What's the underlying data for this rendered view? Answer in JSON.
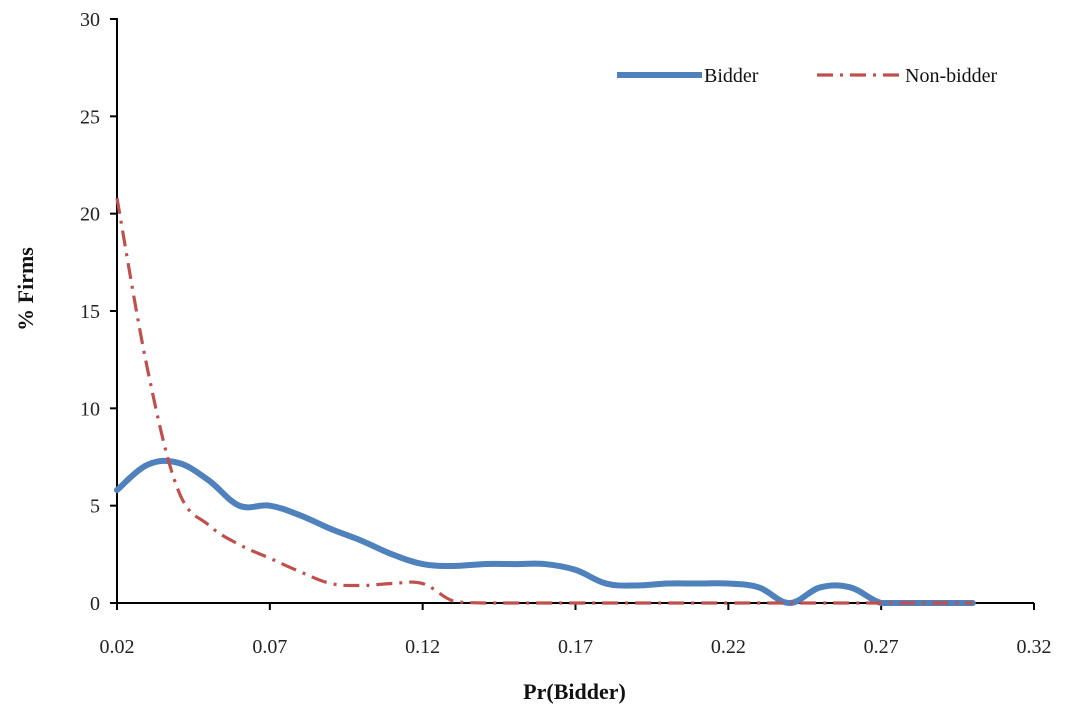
{
  "chart_data": {
    "type": "line",
    "title": "",
    "xlabel": "Pr(Bidder)",
    "ylabel": "% Firms",
    "xlim": [
      0.02,
      0.32
    ],
    "ylim": [
      0,
      30
    ],
    "x_ticks": [
      "0.02",
      "0.07",
      "0.12",
      "0.17",
      "0.22",
      "0.27",
      "0.32"
    ],
    "y_ticks": [
      "0",
      "5",
      "10",
      "15",
      "20",
      "25",
      "30"
    ],
    "grid": false,
    "legend_position": "top-right",
    "series": [
      {
        "name": "Bidder",
        "color": "#4f81bd",
        "style": "solid",
        "points": [
          [
            0.02,
            5.8
          ],
          [
            0.03,
            7.1
          ],
          [
            0.04,
            7.2
          ],
          [
            0.05,
            6.3
          ],
          [
            0.06,
            5.0
          ],
          [
            0.07,
            5.0
          ],
          [
            0.08,
            4.5
          ],
          [
            0.09,
            3.8
          ],
          [
            0.1,
            3.2
          ],
          [
            0.11,
            2.5
          ],
          [
            0.12,
            2.0
          ],
          [
            0.13,
            1.9
          ],
          [
            0.14,
            2.0
          ],
          [
            0.15,
            2.0
          ],
          [
            0.16,
            2.0
          ],
          [
            0.17,
            1.7
          ],
          [
            0.18,
            1.0
          ],
          [
            0.19,
            0.9
          ],
          [
            0.2,
            1.0
          ],
          [
            0.21,
            1.0
          ],
          [
            0.22,
            1.0
          ],
          [
            0.23,
            0.8
          ],
          [
            0.24,
            0.0
          ],
          [
            0.25,
            0.8
          ],
          [
            0.26,
            0.8
          ],
          [
            0.27,
            0.0
          ],
          [
            0.28,
            0.0
          ],
          [
            0.29,
            0.0
          ],
          [
            0.3,
            0.0
          ]
        ]
      },
      {
        "name": "Non-bidder",
        "color": "#c0504d",
        "style": "dash-dot",
        "points": [
          [
            0.02,
            20.8
          ],
          [
            0.03,
            12.0
          ],
          [
            0.04,
            5.8
          ],
          [
            0.05,
            4.0
          ],
          [
            0.06,
            3.0
          ],
          [
            0.07,
            2.3
          ],
          [
            0.08,
            1.6
          ],
          [
            0.09,
            1.0
          ],
          [
            0.1,
            0.9
          ],
          [
            0.11,
            1.0
          ],
          [
            0.12,
            1.0
          ],
          [
            0.13,
            0.1
          ],
          [
            0.14,
            0.0
          ],
          [
            0.15,
            0.0
          ],
          [
            0.16,
            0.0
          ],
          [
            0.17,
            0.0
          ],
          [
            0.18,
            0.0
          ],
          [
            0.19,
            0.0
          ],
          [
            0.2,
            0.0
          ],
          [
            0.21,
            0.0
          ],
          [
            0.22,
            0.0
          ],
          [
            0.23,
            0.0
          ],
          [
            0.24,
            0.0
          ],
          [
            0.25,
            0.0
          ],
          [
            0.26,
            0.0
          ],
          [
            0.27,
            0.0
          ],
          [
            0.28,
            0.0
          ],
          [
            0.29,
            0.0
          ],
          [
            0.3,
            0.0
          ]
        ]
      }
    ]
  }
}
